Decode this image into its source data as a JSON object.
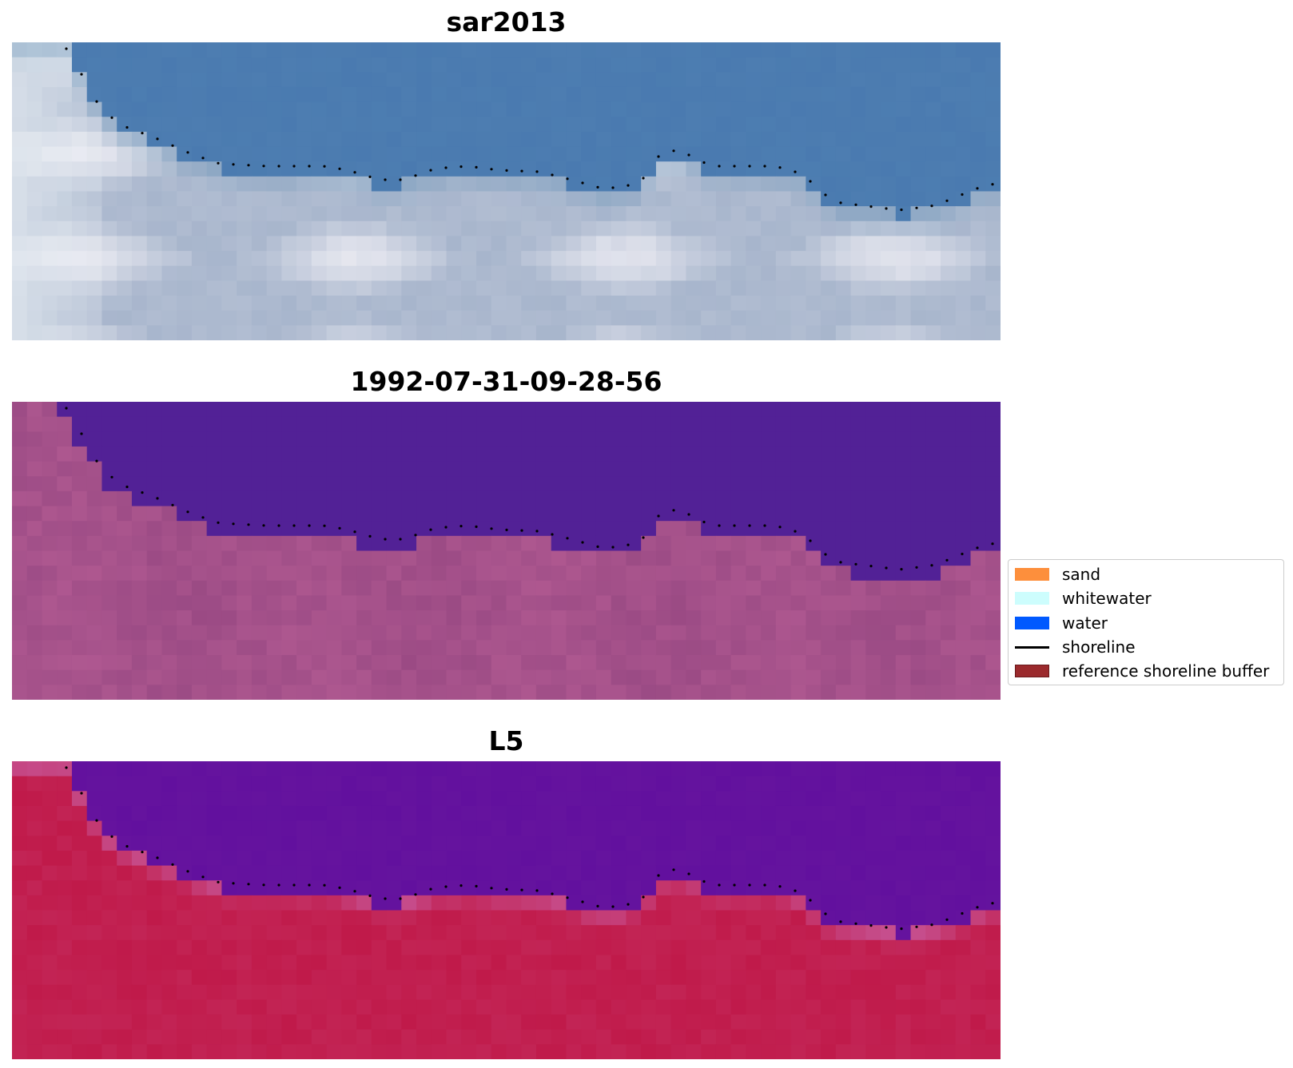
{
  "panels": [
    {
      "title": "sar2013",
      "style": "rgb"
    },
    {
      "title": "1992-07-31-09-28-56",
      "style": "classified"
    },
    {
      "title": "L5",
      "style": "index"
    }
  ],
  "legend": {
    "items": [
      {
        "label": "sand",
        "kind": "patch",
        "color": "#fd8f3c"
      },
      {
        "label": "whitewater",
        "kind": "patch",
        "color": "#cdfdfd"
      },
      {
        "label": "water",
        "kind": "patch",
        "color": "#0059ff"
      },
      {
        "label": "shoreline",
        "kind": "line",
        "color": "#000000"
      },
      {
        "label": "reference shoreline buffer",
        "kind": "patch",
        "color": "#9b2a2d"
      }
    ]
  },
  "colors": {
    "sea_blue": "#4a7ab0",
    "land_grey": "#a7b5cc",
    "classified_water": "#522196",
    "classified_land": "#9a4a84",
    "index_water": "#62109e",
    "index_land": "#c01a4a",
    "shoreline_dots": "#000000"
  }
}
